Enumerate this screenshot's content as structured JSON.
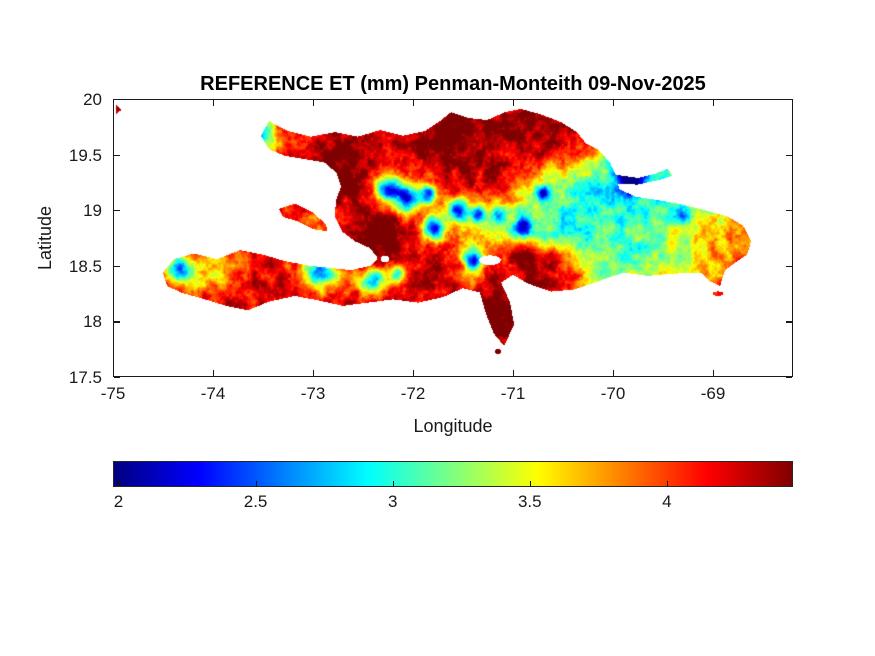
{
  "figure": {
    "title": "REFERENCE ET (mm) Penman-Monteith 09-Nov-2025",
    "background": "#ffffff",
    "text_color": "#1a1a1a"
  },
  "axes": {
    "xlabel": "Longitude",
    "ylabel": "Latitude",
    "xlim": [
      -75,
      -68.2
    ],
    "ylim": [
      17.5,
      20
    ],
    "xticks": [
      -75,
      -74,
      -73,
      -72,
      -71,
      -70,
      -69
    ],
    "xticklabels": [
      "-75",
      "-74",
      "-73",
      "-72",
      "-71",
      "-70",
      "-69"
    ],
    "yticks": [
      20,
      19.5,
      19,
      18.5,
      18,
      17.5
    ],
    "yticklabels": [
      "20",
      "19.5",
      "19",
      "18.5",
      "18",
      "17.5"
    ]
  },
  "colorbar": {
    "orientation": "horizontal",
    "colormap": "jet",
    "range": [
      1.98,
      4.46
    ],
    "ticks": [
      2,
      2.5,
      3,
      3.5,
      4
    ],
    "tick_labels": [
      "2",
      "2.5",
      "3",
      "3.5",
      "4"
    ]
  },
  "chart_data": {
    "type": "heatmap",
    "title": "REFERENCE ET (mm) Penman-Monteith 09-Nov-2025",
    "variable": "Reference ET",
    "units": "mm",
    "method": "Penman-Monteith",
    "date": "09-Nov-2025",
    "region": "Hispaniola (Haiti and Dominican Republic)",
    "xlabel": "Longitude",
    "ylabel": "Latitude",
    "xlim": [
      -75,
      -68.2
    ],
    "ylim": [
      17.5,
      20
    ],
    "value_range": [
      1.98,
      4.46
    ],
    "colormap": "jet",
    "grid": {
      "lat0": 20.0,
      "dlat": 0.2,
      "lon0": -74.6,
      "dlon": 0.2,
      "values": [
        [
          4.2,
          4.2,
          4.2,
          4.2,
          4.15,
          4.1,
          4.0,
          4.1,
          4.2,
          4.25,
          4.3,
          4.3,
          4.3,
          4.35,
          4.4,
          4.45,
          4.35,
          4.35,
          4.4,
          4.45,
          4.4,
          4.25,
          3.9,
          3.5,
          3.1,
          3.0,
          3.0,
          3.1,
          3.2,
          3.4,
          3.6,
          3.6
        ],
        [
          4.2,
          4.2,
          4.2,
          4.2,
          4.15,
          4.1,
          3.9,
          4.1,
          4.2,
          4.25,
          4.3,
          4.3,
          4.3,
          4.35,
          4.4,
          4.45,
          4.35,
          4.35,
          4.4,
          4.45,
          4.4,
          4.25,
          3.9,
          3.5,
          3.1,
          3.0,
          3.0,
          3.1,
          3.2,
          3.4,
          3.6,
          3.6
        ],
        [
          4.2,
          4.2,
          4.2,
          4.2,
          4.1,
          4.0,
          3.7,
          4.0,
          4.2,
          4.3,
          4.35,
          4.3,
          4.25,
          4.3,
          4.4,
          4.45,
          4.4,
          4.3,
          4.35,
          4.4,
          4.35,
          4.1,
          3.7,
          3.3,
          3.0,
          3.0,
          3.05,
          3.1,
          3.2,
          3.3,
          3.5,
          3.5
        ],
        [
          4.2,
          4.2,
          4.2,
          4.2,
          4.2,
          4.2,
          4.2,
          4.25,
          4.3,
          4.35,
          4.3,
          4.2,
          4.1,
          4.0,
          4.1,
          4.2,
          4.25,
          4.3,
          4.2,
          4.0,
          3.8,
          3.6,
          3.4,
          3.1,
          3.0,
          3.0,
          3.0,
          3.1,
          3.2,
          3.3,
          3.4,
          3.4
        ],
        [
          4.2,
          4.2,
          4.2,
          4.2,
          4.2,
          4.2,
          4.25,
          4.3,
          4.35,
          4.35,
          4.3,
          4.25,
          4.0,
          3.9,
          3.9,
          4.1,
          4.2,
          4.2,
          3.9,
          3.5,
          3.2,
          3.1,
          3.0,
          2.9,
          2.9,
          3.0,
          3.0,
          3.05,
          3.15,
          3.3,
          3.5,
          3.5
        ],
        [
          4.2,
          4.2,
          4.2,
          4.2,
          4.2,
          4.2,
          4.2,
          4.1,
          3.9,
          4.0,
          4.25,
          4.35,
          4.2,
          4.0,
          3.8,
          3.6,
          3.5,
          3.5,
          3.4,
          3.2,
          3.05,
          3.0,
          3.0,
          3.0,
          3.0,
          3.0,
          3.1,
          3.2,
          3.4,
          3.7,
          3.8,
          3.8
        ],
        [
          4.2,
          4.2,
          4.2,
          4.2,
          4.2,
          4.15,
          4.1,
          4.0,
          3.9,
          4.0,
          4.3,
          4.35,
          4.3,
          4.25,
          4.1,
          3.9,
          3.7,
          3.5,
          3.3,
          3.1,
          3.0,
          3.0,
          3.05,
          3.1,
          3.1,
          3.2,
          3.3,
          3.5,
          3.7,
          3.9,
          3.8,
          3.8
        ],
        [
          4.2,
          4.1,
          3.9,
          3.7,
          3.9,
          4.1,
          4.15,
          4.1,
          4.05,
          4.0,
          4.15,
          4.35,
          4.3,
          4.3,
          4.25,
          4.0,
          3.6,
          4.0,
          4.3,
          4.35,
          4.25,
          3.6,
          3.2,
          3.1,
          3.1,
          3.2,
          3.3,
          3.5,
          3.7,
          3.9,
          3.9,
          3.9
        ],
        [
          4.2,
          4.0,
          3.6,
          3.6,
          3.9,
          4.15,
          4.2,
          4.1,
          3.7,
          3.6,
          4.0,
          4.25,
          4.3,
          4.3,
          4.3,
          4.2,
          3.9,
          4.2,
          4.35,
          4.4,
          4.3,
          4.0,
          3.5,
          3.3,
          3.3,
          3.4,
          3.5,
          3.6,
          3.8,
          4.0,
          3.9,
          3.9
        ],
        [
          4.2,
          4.2,
          4.2,
          4.2,
          4.2,
          4.2,
          4.2,
          4.2,
          4.1,
          4.1,
          4.2,
          4.25,
          4.3,
          4.3,
          4.3,
          4.3,
          4.2,
          4.35,
          4.4,
          4.4,
          4.3,
          4.1,
          3.8,
          3.6,
          3.6,
          3.7,
          3.8,
          4.0,
          4.1,
          4.1,
          4.0,
          4.0
        ],
        [
          4.2,
          4.2,
          4.2,
          4.2,
          4.2,
          4.2,
          4.2,
          4.2,
          4.2,
          4.2,
          4.2,
          4.25,
          4.3,
          4.3,
          4.3,
          4.3,
          4.3,
          4.45,
          4.45,
          4.3,
          4.2,
          4.1,
          3.9,
          3.8,
          3.8,
          3.9,
          4.0,
          4.0,
          4.0,
          4.0,
          4.0,
          4.0
        ],
        [
          4.2,
          4.2,
          4.2,
          4.2,
          4.2,
          4.2,
          4.2,
          4.2,
          4.2,
          4.2,
          4.2,
          4.25,
          4.3,
          4.3,
          4.3,
          4.3,
          4.3,
          4.4,
          4.4,
          4.3,
          4.2,
          4.1,
          4.0,
          4.0,
          4.0,
          4.0,
          4.0,
          4.0,
          4.0,
          4.0,
          4.0,
          4.0
        ],
        [
          4.2,
          4.2,
          4.2,
          4.2,
          4.2,
          4.2,
          4.2,
          4.2,
          4.2,
          4.2,
          4.2,
          4.2,
          4.25,
          4.3,
          4.3,
          4.3,
          4.35,
          4.35,
          4.3,
          4.2,
          4.1,
          4.0,
          4.0,
          4.0,
          4.0,
          4.0,
          4.0,
          4.0,
          4.0,
          4.0,
          4.0,
          4.0
        ]
      ]
    },
    "anomalies": [
      [
        -73.55,
        19.7,
        0.1,
        -1.25
      ],
      [
        -74.35,
        18.47,
        0.09,
        -1.35
      ],
      [
        -72.95,
        18.45,
        0.1,
        -1.15
      ],
      [
        -72.25,
        19.18,
        0.09,
        -1.7
      ],
      [
        -72.05,
        19.1,
        0.08,
        -1.7
      ],
      [
        -71.85,
        19.15,
        0.06,
        -1.3
      ],
      [
        -71.8,
        18.83,
        0.08,
        -1.6
      ],
      [
        -71.55,
        19.0,
        0.07,
        -1.3
      ],
      [
        -71.35,
        18.95,
        0.05,
        -1.1
      ],
      [
        -72.4,
        18.37,
        0.09,
        -1.6
      ],
      [
        -72.15,
        18.42,
        0.06,
        -1.3
      ],
      [
        -71.4,
        18.55,
        0.06,
        -1.5
      ],
      [
        -70.9,
        18.85,
        0.06,
        -1.2
      ],
      [
        -70.7,
        19.15,
        0.05,
        -1.2
      ],
      [
        -69.82,
        19.29,
        0.09,
        -1.45
      ],
      [
        -69.3,
        18.95,
        0.05,
        -0.7
      ],
      [
        -71.15,
        18.95,
        0.05,
        -0.9
      ],
      [
        -72.75,
        19.35,
        0.2,
        0.25
      ],
      [
        -71.6,
        19.55,
        0.25,
        0.2
      ],
      [
        -72.45,
        18.62,
        0.15,
        0.3
      ],
      [
        -71.15,
        18.0,
        0.15,
        0.25
      ],
      [
        -70.3,
        19.65,
        0.15,
        0.25
      ],
      [
        -72.3,
        18.85,
        0.12,
        0.2
      ]
    ],
    "coastline": {
      "main": [
        [
          -73.44,
          19.8
        ],
        [
          -73.25,
          19.71
        ],
        [
          -73.02,
          19.66
        ],
        [
          -72.78,
          19.7
        ],
        [
          -72.55,
          19.66
        ],
        [
          -72.33,
          19.72
        ],
        [
          -72.1,
          19.67
        ],
        [
          -71.88,
          19.71
        ],
        [
          -71.73,
          19.8
        ],
        [
          -71.62,
          19.88
        ],
        [
          -71.45,
          19.83
        ],
        [
          -71.26,
          19.81
        ],
        [
          -71.08,
          19.88
        ],
        [
          -70.92,
          19.91
        ],
        [
          -70.72,
          19.86
        ],
        [
          -70.52,
          19.79
        ],
        [
          -70.36,
          19.7
        ],
        [
          -70.27,
          19.6
        ],
        [
          -70.14,
          19.54
        ],
        [
          -70.03,
          19.43
        ],
        [
          -69.97,
          19.31
        ],
        [
          -69.94,
          19.19
        ],
        [
          -69.78,
          19.12
        ],
        [
          -69.55,
          19.09
        ],
        [
          -69.3,
          19.05
        ],
        [
          -69.05,
          18.99
        ],
        [
          -68.85,
          18.94
        ],
        [
          -68.7,
          18.86
        ],
        [
          -68.62,
          18.72
        ],
        [
          -68.66,
          18.6
        ],
        [
          -68.78,
          18.53
        ],
        [
          -68.88,
          18.46
        ],
        [
          -68.93,
          18.32
        ],
        [
          -69.03,
          18.36
        ],
        [
          -69.12,
          18.44
        ],
        [
          -69.38,
          18.43
        ],
        [
          -69.65,
          18.41
        ],
        [
          -69.9,
          18.44
        ],
        [
          -70.12,
          18.37
        ],
        [
          -70.38,
          18.29
        ],
        [
          -70.62,
          18.27
        ],
        [
          -70.85,
          18.34
        ],
        [
          -71.0,
          18.42
        ],
        [
          -71.12,
          18.35
        ],
        [
          -71.03,
          18.17
        ],
        [
          -70.99,
          17.97
        ],
        [
          -71.09,
          17.78
        ],
        [
          -71.19,
          17.89
        ],
        [
          -71.27,
          18.07
        ],
        [
          -71.33,
          18.26
        ],
        [
          -71.5,
          18.3
        ],
        [
          -71.7,
          18.22
        ],
        [
          -71.95,
          18.17
        ],
        [
          -72.2,
          18.2
        ],
        [
          -72.45,
          18.17
        ],
        [
          -72.7,
          18.14
        ],
        [
          -72.95,
          18.19
        ],
        [
          -73.18,
          18.23
        ],
        [
          -73.44,
          18.18
        ],
        [
          -73.65,
          18.1
        ],
        [
          -73.87,
          18.14
        ],
        [
          -74.12,
          18.21
        ],
        [
          -74.32,
          18.26
        ],
        [
          -74.46,
          18.32
        ],
        [
          -74.5,
          18.44
        ],
        [
          -74.39,
          18.56
        ],
        [
          -74.19,
          18.61
        ],
        [
          -73.96,
          18.56
        ],
        [
          -73.73,
          18.64
        ],
        [
          -73.5,
          18.6
        ],
        [
          -73.28,
          18.54
        ],
        [
          -73.04,
          18.5
        ],
        [
          -72.83,
          18.48
        ],
        [
          -72.62,
          18.46
        ],
        [
          -72.42,
          18.5
        ],
        [
          -72.35,
          18.57
        ],
        [
          -72.43,
          18.66
        ],
        [
          -72.58,
          18.72
        ],
        [
          -72.71,
          18.81
        ],
        [
          -72.78,
          18.94
        ],
        [
          -72.77,
          19.09
        ],
        [
          -72.72,
          19.21
        ],
        [
          -72.76,
          19.33
        ],
        [
          -72.88,
          19.43
        ],
        [
          -73.08,
          19.46
        ],
        [
          -73.28,
          19.49
        ],
        [
          -73.44,
          19.55
        ],
        [
          -73.52,
          19.67
        ]
      ],
      "gonave_island": [
        [
          -73.34,
          19.01
        ],
        [
          -73.18,
          19.06
        ],
        [
          -73.0,
          18.98
        ],
        [
          -72.87,
          18.87
        ],
        [
          -72.86,
          18.81
        ],
        [
          -73.0,
          18.83
        ],
        [
          -73.15,
          18.9
        ],
        [
          -73.3,
          18.94
        ]
      ],
      "samana_spit": [
        [
          -70.0,
          19.32
        ],
        [
          -69.75,
          19.29
        ],
        [
          -69.57,
          19.33
        ],
        [
          -69.45,
          19.37
        ],
        [
          -69.41,
          19.31
        ],
        [
          -69.55,
          19.27
        ],
        [
          -69.76,
          19.23
        ],
        [
          -69.97,
          19.24
        ]
      ],
      "corner_mark": [
        [
          -74.97,
          19.95
        ],
        [
          -74.92,
          19.9
        ],
        [
          -74.97,
          19.86
        ]
      ],
      "islets": [
        [
          -73.63,
          18.2,
          0.035,
          0.028
        ],
        [
          -71.15,
          17.73,
          0.028,
          0.022
        ],
        [
          -68.95,
          18.25,
          0.055,
          0.02
        ]
      ],
      "lakes": [
        [
          -71.23,
          18.55,
          0.11,
          0.045
        ],
        [
          -72.28,
          18.56,
          0.045,
          0.03
        ]
      ]
    }
  }
}
